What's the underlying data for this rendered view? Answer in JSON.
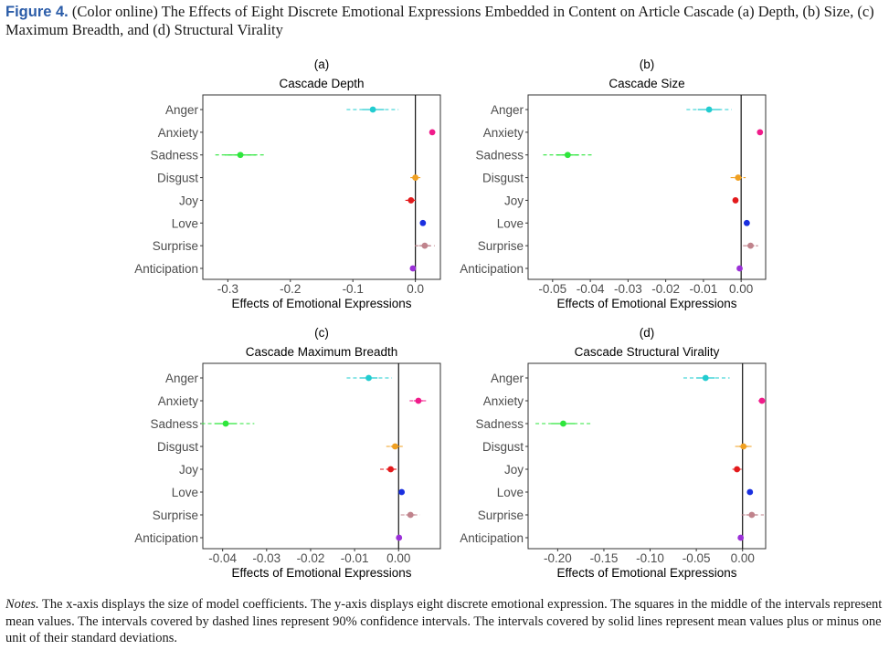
{
  "caption": {
    "label": "Figure 4.",
    "text": "(Color online) The Effects of Eight Discrete Emotional Expressions Embedded in Content on Article Cascade (a) Depth, (b) Size, (c) Maximum Breadth, and (d) Structural Virality"
  },
  "notes": {
    "label": "Notes.",
    "text": "The x-axis displays the size of model coefficients. The y-axis displays eight discrete emotional expression. The squares in the middle of the intervals represent mean values. The intervals covered by dashed lines represent 90% confidence intervals. The intervals covered by solid lines represent mean values plus or minus one unit of their standard deviations."
  },
  "colors": {
    "Anger": "#22ccd0",
    "Anxiety": "#f01b8a",
    "Sadness": "#2ee63c",
    "Disgust": "#f0a022",
    "Joy": "#e31a1c",
    "Love": "#1a2fe0",
    "Surprise": "#c0838c",
    "Anticipation": "#9b30d8"
  },
  "chart_data": [
    {
      "type": "dot-interval",
      "panel": "(a)",
      "title": "Cascade Depth",
      "xlabel": "Effects of Emotional Expressions",
      "categories": [
        "Anger",
        "Anxiety",
        "Sadness",
        "Disgust",
        "Joy",
        "Love",
        "Surprise",
        "Anticipation"
      ],
      "xlim": [
        -0.34,
        0.04
      ],
      "xticks": [
        -0.3,
        -0.2,
        -0.1,
        0.0
      ],
      "xtick_labels": [
        "-0.3",
        "-0.2",
        "-0.1",
        "0.0"
      ],
      "zero_line": 0,
      "mean": [
        -0.068,
        0.027,
        -0.28,
        0.0,
        -0.007,
        0.012,
        0.015,
        -0.004
      ],
      "sd_interval": [
        [
          -0.085,
          -0.05
        ],
        [
          0.025,
          0.029
        ],
        [
          -0.305,
          -0.255
        ],
        [
          -0.005,
          0.004
        ],
        [
          -0.013,
          -0.001
        ],
        [
          0.01,
          0.014
        ],
        [
          0.006,
          0.024
        ],
        [
          -0.006,
          -0.002
        ]
      ],
      "ci90": [
        [
          -0.11,
          -0.027
        ],
        [
          0.024,
          0.03
        ],
        [
          -0.32,
          -0.24
        ],
        [
          -0.008,
          0.008
        ],
        [
          -0.016,
          0.002
        ],
        [
          0.009,
          0.015
        ],
        [
          -0.001,
          0.031
        ],
        [
          -0.007,
          -0.001
        ]
      ]
    },
    {
      "type": "dot-interval",
      "panel": "(b)",
      "title": "Cascade Size",
      "xlabel": "Effects of Emotional Expressions",
      "categories": [
        "Anger",
        "Anxiety",
        "Sadness",
        "Disgust",
        "Joy",
        "Love",
        "Surprise",
        "Anticipation"
      ],
      "xlim": [
        -0.0565,
        0.0065
      ],
      "xticks": [
        -0.05,
        -0.04,
        -0.03,
        -0.02,
        -0.01,
        0.0
      ],
      "xtick_labels": [
        "-0.05",
        "-0.04",
        "-0.03",
        "-0.02",
        "-0.01",
        "0.00"
      ],
      "zero_line": 0,
      "mean": [
        -0.0085,
        0.005,
        -0.046,
        -0.0008,
        -0.0015,
        0.0015,
        0.0025,
        -0.0004
      ],
      "sd_interval": [
        [
          -0.0115,
          -0.0055
        ],
        [
          0.0047,
          0.0053
        ],
        [
          -0.049,
          -0.043
        ],
        [
          -0.0018,
          0.0002
        ],
        [
          -0.0019,
          -0.0011
        ],
        [
          0.0012,
          0.0018
        ],
        [
          0.0015,
          0.0035
        ],
        [
          -0.0007,
          -0.0001
        ]
      ],
      "ci90": [
        [
          -0.0145,
          -0.0025
        ],
        [
          0.0045,
          0.0055
        ],
        [
          -0.0525,
          -0.0395
        ],
        [
          -0.0028,
          0.0012
        ],
        [
          -0.0022,
          -0.0008
        ],
        [
          0.001,
          0.002
        ],
        [
          0.0005,
          0.0045
        ],
        [
          -0.0009,
          0.0001
        ]
      ]
    },
    {
      "type": "dot-interval",
      "panel": "(c)",
      "title": "Cascade Maximum Breadth",
      "xlabel": "Effects of Emotional Expressions",
      "categories": [
        "Anger",
        "Anxiety",
        "Sadness",
        "Disgust",
        "Joy",
        "Love",
        "Surprise",
        "Anticipation"
      ],
      "xlim": [
        -0.0445,
        0.0095
      ],
      "xticks": [
        -0.04,
        -0.03,
        -0.02,
        -0.01,
        0.0
      ],
      "xtick_labels": [
        "-0.04",
        "-0.03",
        "-0.02",
        "-0.01",
        "0.00"
      ],
      "zero_line": 0,
      "mean": [
        -0.0068,
        0.0045,
        -0.0393,
        -0.0008,
        -0.0018,
        0.0007,
        0.0027,
        0.0001
      ],
      "sd_interval": [
        [
          -0.0088,
          -0.0048
        ],
        [
          0.0035,
          0.0055
        ],
        [
          -0.0418,
          -0.0368
        ],
        [
          -0.0018,
          0.0002
        ],
        [
          -0.0028,
          -0.0008
        ],
        [
          0.0004,
          0.001
        ],
        [
          0.0017,
          0.0037
        ],
        [
          -0.0001,
          0.0003
        ]
      ],
      "ci90": [
        [
          -0.0118,
          -0.0015
        ],
        [
          0.0025,
          0.0065
        ],
        [
          -0.0448,
          -0.0328
        ],
        [
          -0.0028,
          0.0012
        ],
        [
          -0.0042,
          0.0001
        ],
        [
          0.0001,
          0.0013
        ],
        [
          0.0005,
          0.0049
        ],
        [
          -0.0004,
          0.0006
        ]
      ]
    },
    {
      "type": "dot-interval",
      "panel": "(d)",
      "title": "Cascade Structural Virality",
      "xlabel": "Effects of Emotional Expressions",
      "categories": [
        "Anger",
        "Anxiety",
        "Sadness",
        "Disgust",
        "Joy",
        "Love",
        "Surprise",
        "Anticipation"
      ],
      "xlim": [
        -0.232,
        0.025
      ],
      "xticks": [
        -0.2,
        -0.15,
        -0.1,
        -0.05,
        0.0
      ],
      "xtick_labels": [
        "-0.20",
        "-0.15",
        "-0.10",
        "-0.05",
        "0.00"
      ],
      "zero_line": 0,
      "mean": [
        -0.04,
        0.021,
        -0.194,
        0.001,
        -0.006,
        0.008,
        0.01,
        -0.002
      ],
      "sd_interval": [
        [
          -0.05,
          -0.03
        ],
        [
          0.019,
          0.023
        ],
        [
          -0.207,
          -0.181
        ],
        [
          -0.004,
          0.006
        ],
        [
          -0.009,
          -0.003
        ],
        [
          0.006,
          0.01
        ],
        [
          0.004,
          0.016
        ],
        [
          -0.004,
          0.0
        ]
      ],
      "ci90": [
        [
          -0.064,
          -0.014
        ],
        [
          0.017,
          0.025
        ],
        [
          -0.224,
          -0.163
        ],
        [
          -0.008,
          0.01
        ],
        [
          -0.011,
          -0.001
        ],
        [
          0.005,
          0.011
        ],
        [
          -0.001,
          0.023
        ],
        [
          -0.005,
          0.001
        ]
      ]
    }
  ]
}
